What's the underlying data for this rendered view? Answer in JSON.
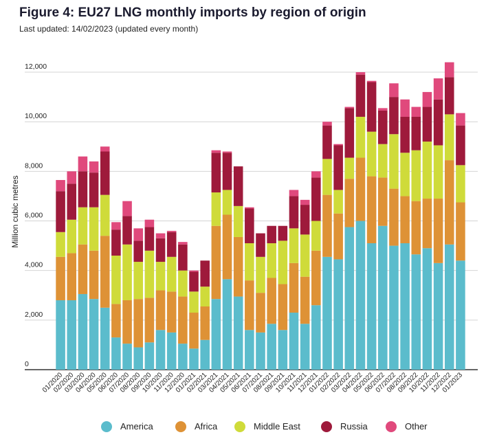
{
  "chart_data": {
    "type": "stacked-bar",
    "title": "Figure 4: EU27 LNG monthly imports by region of origin",
    "subtitle": "Last updated: 14/02/2023 (updated every month)",
    "y_label": "Million cubic metres",
    "categories": [
      "01/2020",
      "02/2020",
      "03/2020",
      "04/2020",
      "05/2020",
      "06/2020",
      "07/2020",
      "08/2020",
      "09/2020",
      "10/2020",
      "11/2020",
      "12/2020",
      "01/2021",
      "02/2021",
      "03/2021",
      "04/2021",
      "05/2021",
      "06/2021",
      "07/2021",
      "08/2021",
      "09/2021",
      "10/2021",
      "11/2021",
      "12/2021",
      "01/2022",
      "02/2022",
      "03/2022",
      "04/2022",
      "05/2022",
      "06/2022",
      "07/2022",
      "08/2022",
      "09/2022",
      "10/2022",
      "11/2022",
      "12/2022",
      "01/2023"
    ],
    "series": [
      {
        "name": "America",
        "color": "#5bbccc",
        "values": [
          2800,
          2800,
          3050,
          2850,
          2500,
          1300,
          1050,
          900,
          1100,
          1600,
          1500,
          1050,
          850,
          1200,
          2850,
          3650,
          2950,
          1600,
          1500,
          1850,
          1600,
          2300,
          1850,
          2600,
          4550,
          4450,
          5750,
          6000,
          5100,
          5800,
          5000,
          5100,
          4650,
          4900,
          4300,
          5050,
          4400
        ]
      },
      {
        "name": "Africa",
        "color": "#de9236",
        "values": [
          1750,
          1900,
          2000,
          1950,
          2900,
          1350,
          1750,
          1950,
          1800,
          1600,
          1650,
          1900,
          1450,
          1350,
          2950,
          2600,
          2400,
          2000,
          1600,
          1850,
          1850,
          2000,
          1900,
          2200,
          2500,
          1850,
          1950,
          2550,
          2700,
          1950,
          2300,
          1900,
          2150,
          2000,
          2600,
          3400,
          2350
        ]
      },
      {
        "name": "Middle East",
        "color": "#cfdb3a",
        "values": [
          1000,
          1350,
          1500,
          1750,
          1650,
          1950,
          2250,
          1500,
          1900,
          1150,
          1400,
          1050,
          850,
          800,
          1350,
          1000,
          1250,
          1500,
          1450,
          1400,
          1750,
          1400,
          1700,
          1200,
          1450,
          950,
          850,
          1650,
          1800,
          1350,
          2200,
          1750,
          2050,
          2300,
          2150,
          1850,
          1500
        ]
      },
      {
        "name": "Russia",
        "color": "#9e1a3b",
        "values": [
          1650,
          1450,
          1450,
          1400,
          1750,
          1050,
          1150,
          850,
          950,
          950,
          1000,
          1050,
          800,
          1050,
          1600,
          1500,
          1600,
          1400,
          950,
          700,
          600,
          1300,
          1200,
          1750,
          1350,
          1800,
          2000,
          1700,
          2000,
          1350,
          1500,
          1450,
          1350,
          1400,
          1850,
          1500,
          1600
        ]
      },
      {
        "name": "Other",
        "color": "#e0497c",
        "values": [
          450,
          500,
          600,
          450,
          200,
          300,
          600,
          500,
          300,
          200,
          50,
          100,
          50,
          0,
          100,
          50,
          0,
          50,
          0,
          0,
          0,
          250,
          200,
          250,
          150,
          50,
          50,
          100,
          50,
          100,
          550,
          700,
          400,
          600,
          850,
          600,
          500
        ]
      }
    ],
    "ylim": [
      0,
      12500
    ],
    "yticks": [
      0,
      {
        "value": 2000,
        "label": "2,000"
      },
      {
        "value": 4000,
        "label": "4,000"
      },
      {
        "value": 6000,
        "label": "6,000"
      },
      {
        "value": 8000,
        "label": "8,000"
      },
      {
        "value": 10000,
        "label": "10,000"
      },
      {
        "value": 12000,
        "label": "12,000"
      }
    ],
    "grid": true
  }
}
